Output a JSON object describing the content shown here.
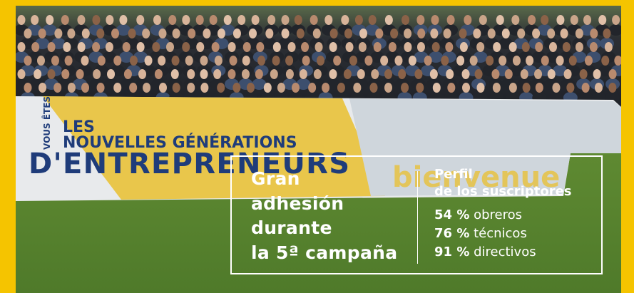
{
  "banner": {
    "small": "VOUS ÊTES",
    "line1": "LES",
    "line2": "NOUVELLES GÉNÉRATIONS",
    "line3": "D'ENTREPRENEURS",
    "welcome": "bienvenue"
  },
  "headline": [
    "Gran",
    "adhesión",
    "durante",
    "la 5ª campaña"
  ],
  "profile": {
    "title": [
      "Perfil",
      "de los suscriptores"
    ],
    "stats": [
      {
        "value": "54 %",
        "label": "obreros"
      },
      {
        "value": "76 %",
        "label": "técnicos"
      },
      {
        "value": "91 %",
        "label": "directivos"
      }
    ]
  }
}
